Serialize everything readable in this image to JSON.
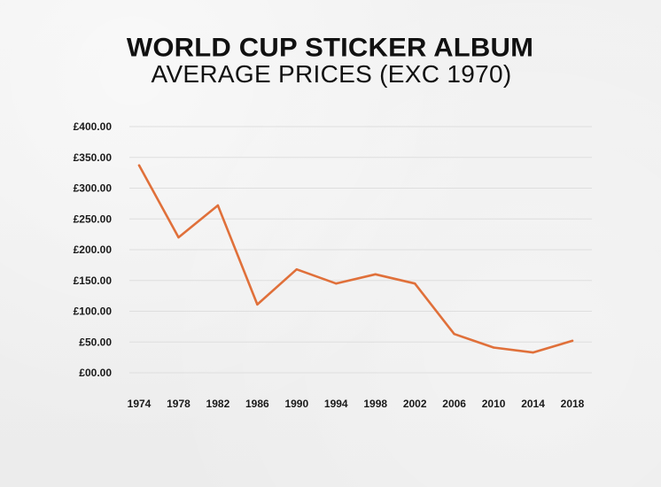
{
  "chart_data": {
    "type": "line",
    "title": "WORLD CUP STICKER ALBUM",
    "subtitle": "AVERAGE PRICES (EXC 1970)",
    "x": [
      "1974",
      "1978",
      "1982",
      "1986",
      "1990",
      "1994",
      "1998",
      "2002",
      "2006",
      "2010",
      "2014",
      "2018"
    ],
    "y_ticks": [
      "£00.00",
      "£50.00",
      "£100.00",
      "£150.00",
      "£200.00",
      "£250.00",
      "£300.00",
      "£350.00",
      "£400.00"
    ],
    "y_tick_values": [
      0,
      50,
      100,
      150,
      200,
      250,
      300,
      350,
      400
    ],
    "series": [
      {
        "name": "Average price",
        "values": [
          337,
          220,
          272,
          111,
          168,
          145,
          160,
          145,
          63,
          41,
          33,
          52
        ]
      }
    ],
    "ylim": [
      0,
      400
    ],
    "grid": true,
    "colors": {
      "line": "#e0703a",
      "grid": "#dedede",
      "text": "#1a1a1a"
    }
  }
}
